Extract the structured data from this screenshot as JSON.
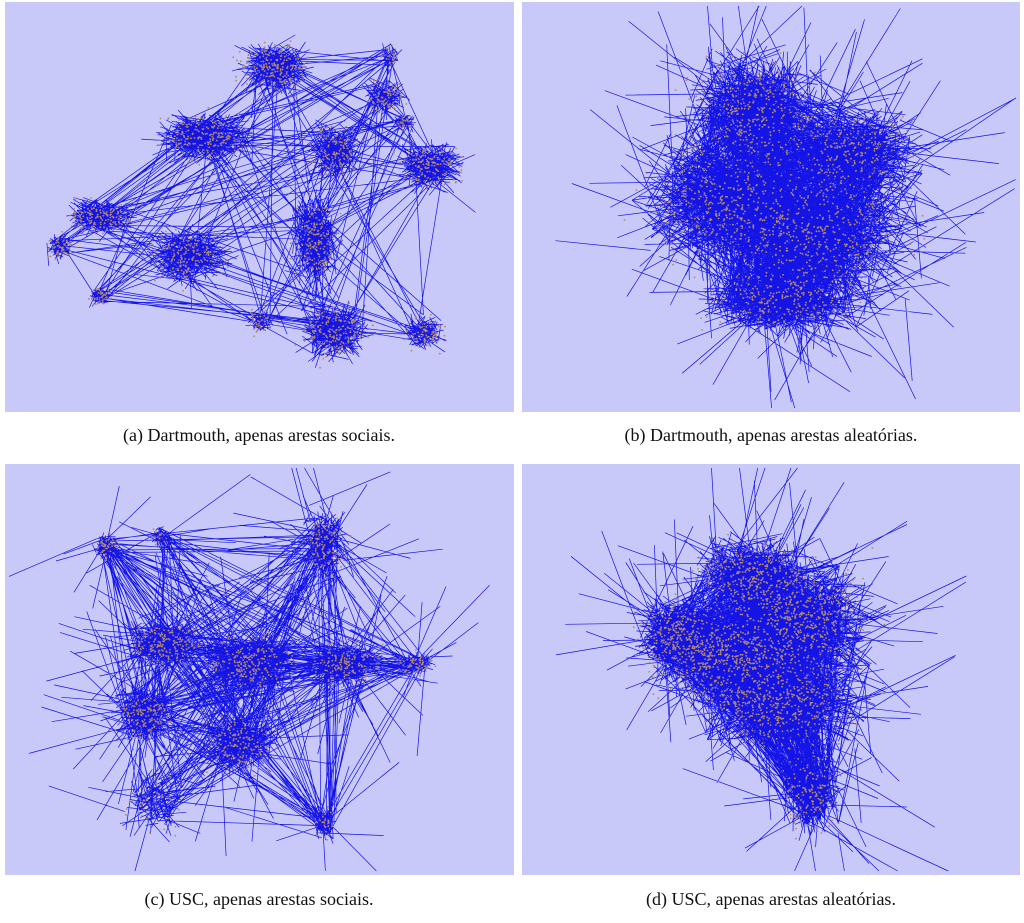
{
  "figure": {
    "panels": [
      {
        "caption": "(a)  Dartmouth, apenas arestas sociais."
      },
      {
        "caption": "(b)  Dartmouth, apenas arestas aleatórias."
      },
      {
        "caption": "(c)  USC, apenas arestas sociais."
      },
      {
        "caption": "(d)  USC, apenas arestas aleatórias."
      }
    ]
  }
}
